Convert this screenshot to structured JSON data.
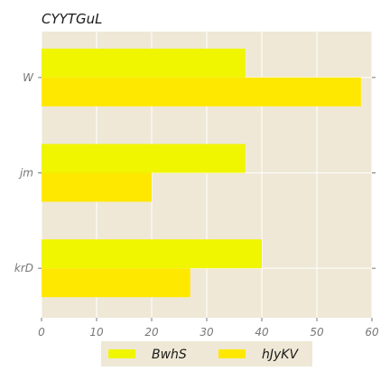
{
  "chart_data": {
    "type": "bar",
    "orientation": "horizontal",
    "title": "CYYTGuL",
    "xlabel": "",
    "ylabel": "",
    "categories": [
      "W",
      "jm",
      "krD"
    ],
    "xlim": [
      0,
      60
    ],
    "xticks": [
      0,
      10,
      20,
      30,
      40,
      50,
      60
    ],
    "grid": true,
    "legend_position": "bottom-center",
    "series": [
      {
        "name": "BwhS",
        "values": [
          37,
          37,
          40
        ],
        "color": "#f0f500"
      },
      {
        "name": "hJyKV",
        "values": [
          58,
          20,
          27
        ],
        "color": "#ffe800"
      }
    ],
    "colors": {
      "plot_background": "#efe8d6",
      "grid": "#ffffff",
      "tick_label": "#777777"
    }
  }
}
